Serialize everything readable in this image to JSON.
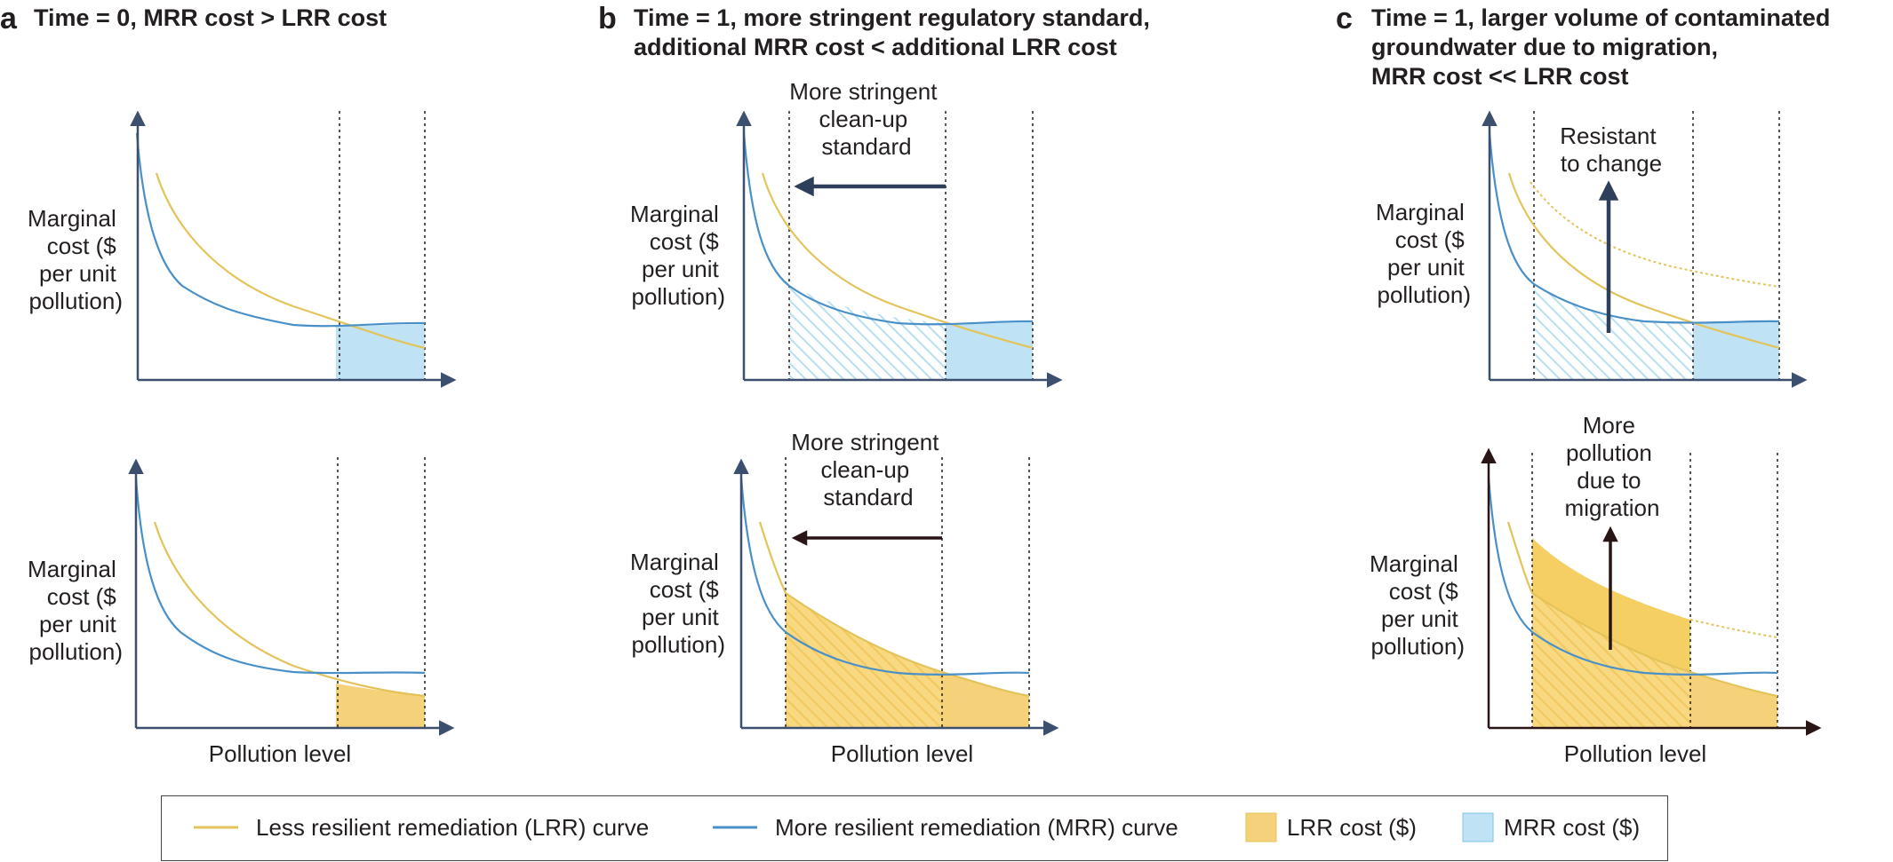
{
  "panels": {
    "a": {
      "letter": "a",
      "title_lines": [
        "Time = 0, MRR cost > LRR cost"
      ]
    },
    "b": {
      "letter": "b",
      "title_lines": [
        "Time = 1, more stringent regulatory standard,",
        "additional MRR cost < additional LRR cost"
      ]
    },
    "c": {
      "letter": "c",
      "title_lines": [
        "Time = 1, larger volume of contaminated",
        "groundwater due to migration,",
        "MRR cost << LRR cost"
      ]
    }
  },
  "axis": {
    "ylabel_lines": [
      "Marginal",
      "cost ($",
      "per unit",
      "pollution)"
    ],
    "xlabel": "Pollution level"
  },
  "annotations": {
    "b_top": [
      "More stringent",
      "clean-up",
      "standard"
    ],
    "b_bottom": [
      "More stringent",
      "clean-up",
      "standard"
    ],
    "c_top": [
      "Resistant",
      "to change"
    ],
    "c_bottom": [
      "More",
      "pollution",
      "due to",
      "migration"
    ]
  },
  "legend": {
    "lrr_curve": "Less resilient remediation (LRR) curve",
    "mrr_curve": "More resilient remediation (MRR) curve",
    "lrr_cost": "LRR cost ($)",
    "mrr_cost": "MRR cost ($)"
  },
  "colors": {
    "lrr_curve": "#e3c35a",
    "mrr_curve": "#4a90c8",
    "lrr_fill": "#f5d27a",
    "mrr_fill": "#bfe3f5",
    "axis": "#3d4f6e",
    "arrow_dark": "#2e3f5c",
    "arrow_brown": "#2a1516"
  }
}
